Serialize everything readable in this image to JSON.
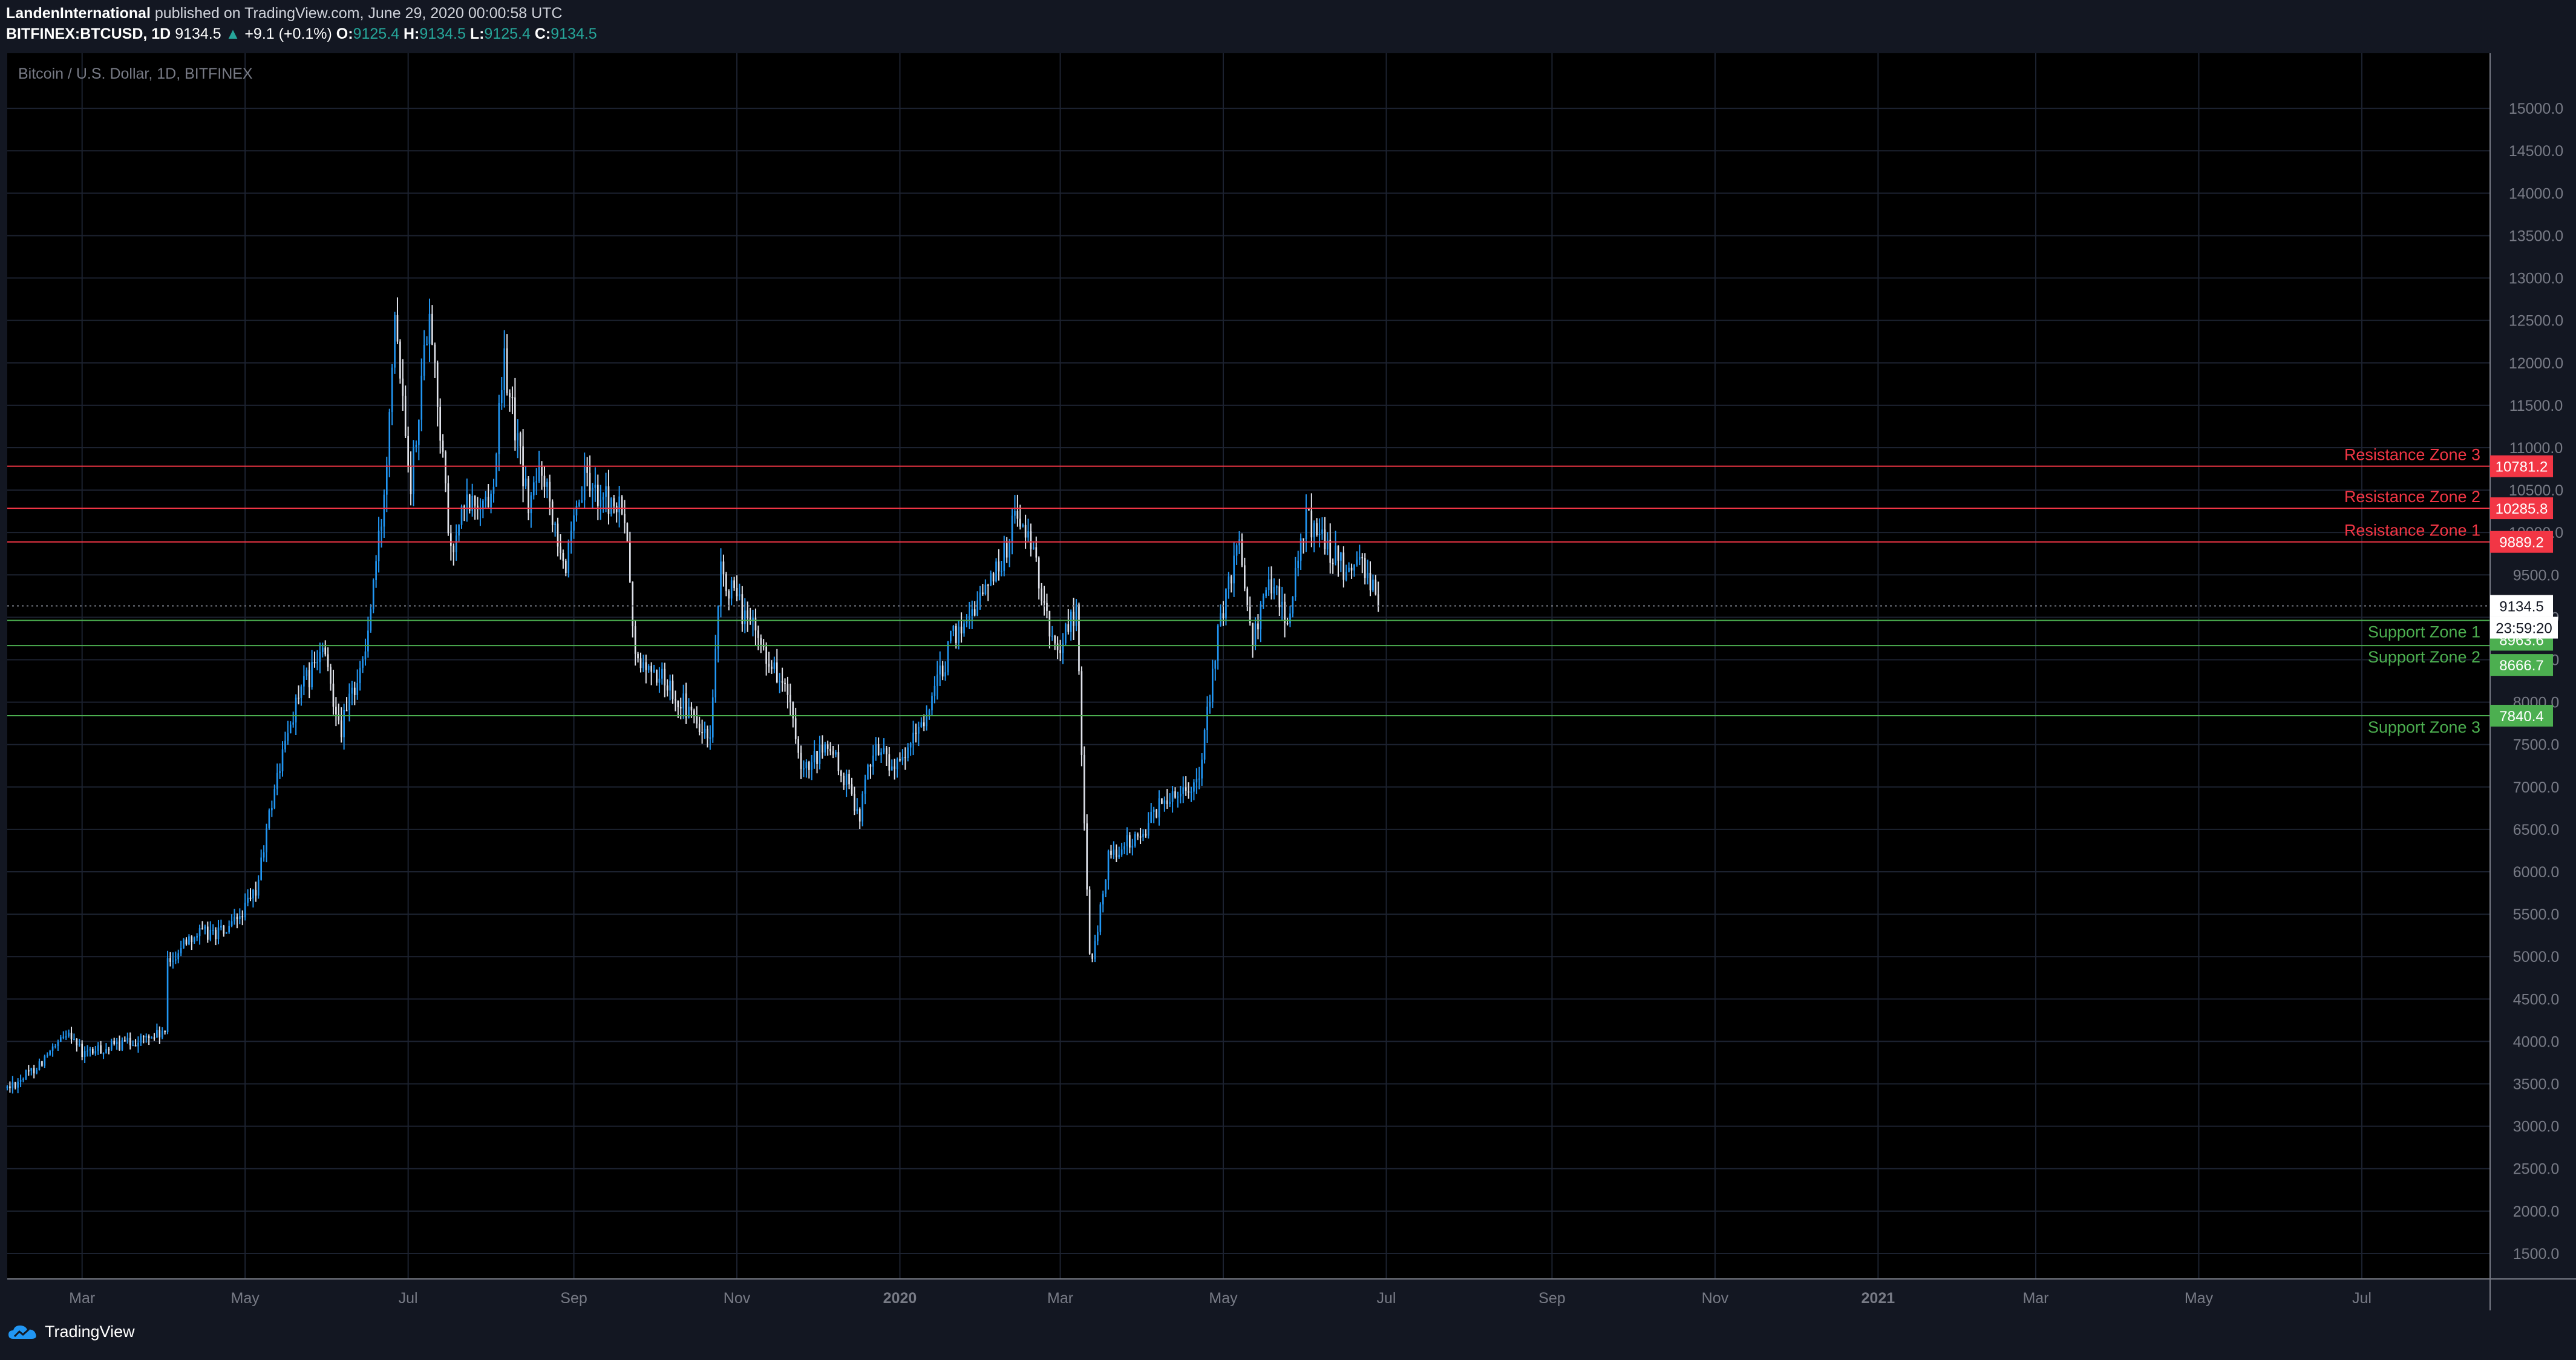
{
  "header": {
    "author": "LandenInternational",
    "published": "published on TradingView.com, June 29, 2020 00:00:58 UTC",
    "symbol": "BITFINEX:BTCUSD, 1D",
    "last": "9134.5",
    "change_arrow": "▲",
    "change": "+9.1 (+0.1%)",
    "o_label": "O:",
    "o_value": "9125.4",
    "h_label": "H:",
    "h_value": "9134.5",
    "l_label": "L:",
    "l_value": "9125.4",
    "c_label": "C:",
    "c_value": "9134.5"
  },
  "footer": {
    "brand": "TradingView",
    "logo_icon": "tradingview-cloud-icon"
  },
  "chart_data": {
    "type": "candlestick",
    "title": "Bitcoin / U.S. Dollar, 1D, BITFINEX",
    "ylim": [
      1200,
      15650
    ],
    "y_ticks": [
      1500,
      2000,
      2500,
      3000,
      3500,
      4000,
      4500,
      5000,
      5500,
      6000,
      6500,
      7000,
      7500,
      8000,
      8500,
      9000,
      9500,
      10000,
      10500,
      11000,
      11500,
      12000,
      12500,
      13000,
      13500,
      14000,
      14500,
      15000
    ],
    "x_range": [
      "2019-02-01",
      "2021-08-18"
    ],
    "x_ticks": [
      {
        "label": "Mar",
        "date": "2019-03-01"
      },
      {
        "label": "May",
        "date": "2019-05-01"
      },
      {
        "label": "Jul",
        "date": "2019-07-01"
      },
      {
        "label": "Sep",
        "date": "2019-09-01"
      },
      {
        "label": "Nov",
        "date": "2019-11-01"
      },
      {
        "label": "2020",
        "date": "2020-01-01"
      },
      {
        "label": "Mar",
        "date": "2020-03-01"
      },
      {
        "label": "May",
        "date": "2020-05-01"
      },
      {
        "label": "Jul",
        "date": "2020-07-01"
      },
      {
        "label": "Sep",
        "date": "2020-09-01"
      },
      {
        "label": "Nov",
        "date": "2020-11-01"
      },
      {
        "label": "2021",
        "date": "2021-01-01"
      },
      {
        "label": "Mar",
        "date": "2021-03-01"
      },
      {
        "label": "May",
        "date": "2021-05-01"
      },
      {
        "label": "Jul",
        "date": "2021-07-01"
      }
    ],
    "series_closes": [
      {
        "date": "2019-02-01",
        "close": 3450
      },
      {
        "date": "2019-02-10",
        "close": 3650
      },
      {
        "date": "2019-02-20",
        "close": 3950
      },
      {
        "date": "2019-02-24",
        "close": 4150
      },
      {
        "date": "2019-03-01",
        "close": 3850
      },
      {
        "date": "2019-03-20",
        "close": 4000
      },
      {
        "date": "2019-04-01",
        "close": 4100
      },
      {
        "date": "2019-04-02",
        "close": 4900
      },
      {
        "date": "2019-04-10",
        "close": 5250
      },
      {
        "date": "2019-04-25",
        "close": 5300
      },
      {
        "date": "2019-05-05",
        "close": 5750
      },
      {
        "date": "2019-05-12",
        "close": 7000
      },
      {
        "date": "2019-05-20",
        "close": 8000
      },
      {
        "date": "2019-05-30",
        "close": 8600
      },
      {
        "date": "2019-06-06",
        "close": 7700
      },
      {
        "date": "2019-06-15",
        "close": 8600
      },
      {
        "date": "2019-06-22",
        "close": 10400
      },
      {
        "date": "2019-06-26",
        "close": 12700
      },
      {
        "date": "2019-07-02",
        "close": 10600
      },
      {
        "date": "2019-07-09",
        "close": 12700
      },
      {
        "date": "2019-07-17",
        "close": 9700
      },
      {
        "date": "2019-07-22",
        "close": 10300
      },
      {
        "date": "2019-08-01",
        "close": 10400
      },
      {
        "date": "2019-08-06",
        "close": 12000
      },
      {
        "date": "2019-08-15",
        "close": 10300
      },
      {
        "date": "2019-08-20",
        "close": 10800
      },
      {
        "date": "2019-08-29",
        "close": 9600
      },
      {
        "date": "2019-09-05",
        "close": 10600
      },
      {
        "date": "2019-09-20",
        "close": 10200
      },
      {
        "date": "2019-09-24",
        "close": 8500
      },
      {
        "date": "2019-10-07",
        "close": 8200
      },
      {
        "date": "2019-10-22",
        "close": 7500
      },
      {
        "date": "2019-10-26",
        "close": 9500
      },
      {
        "date": "2019-11-08",
        "close": 8800
      },
      {
        "date": "2019-11-20",
        "close": 8100
      },
      {
        "date": "2019-11-25",
        "close": 7100
      },
      {
        "date": "2019-12-05",
        "close": 7500
      },
      {
        "date": "2019-12-17",
        "close": 6700
      },
      {
        "date": "2019-12-22",
        "close": 7500
      },
      {
        "date": "2020-01-01",
        "close": 7200
      },
      {
        "date": "2020-01-14",
        "close": 8100
      },
      {
        "date": "2020-01-20",
        "close": 8700
      },
      {
        "date": "2020-02-01",
        "close": 9300
      },
      {
        "date": "2020-02-10",
        "close": 9800
      },
      {
        "date": "2020-02-13",
        "close": 10300
      },
      {
        "date": "2020-02-20",
        "close": 9700
      },
      {
        "date": "2020-02-28",
        "close": 8600
      },
      {
        "date": "2020-03-07",
        "close": 9100
      },
      {
        "date": "2020-03-12",
        "close": 5000
      },
      {
        "date": "2020-03-13",
        "close": 4900
      },
      {
        "date": "2020-03-19",
        "close": 6200
      },
      {
        "date": "2020-03-30",
        "close": 6400
      },
      {
        "date": "2020-04-10",
        "close": 6900
      },
      {
        "date": "2020-04-22",
        "close": 7100
      },
      {
        "date": "2020-04-29",
        "close": 8800
      },
      {
        "date": "2020-05-07",
        "close": 9900
      },
      {
        "date": "2020-05-12",
        "close": 8800
      },
      {
        "date": "2020-05-20",
        "close": 9500
      },
      {
        "date": "2020-05-25",
        "close": 8900
      },
      {
        "date": "2020-06-01",
        "close": 10200
      },
      {
        "date": "2020-06-10",
        "close": 9800
      },
      {
        "date": "2020-06-18",
        "close": 9400
      },
      {
        "date": "2020-06-22",
        "close": 9700
      },
      {
        "date": "2020-06-28",
        "close": 9134.5
      }
    ],
    "horizontal_levels": [
      {
        "name": "Resistance Zone 3",
        "value": 10781.2,
        "label": "10781.2",
        "color": "#f23645"
      },
      {
        "name": "Resistance Zone 2",
        "value": 10285.8,
        "label": "10285.8",
        "color": "#f23645"
      },
      {
        "name": "Resistance Zone 1",
        "value": 9889.2,
        "label": "9889.2",
        "color": "#f23645"
      },
      {
        "name": "Support Zone 1",
        "value": 8963.6,
        "label": "8963.6",
        "color": "#4caf50"
      },
      {
        "name": "Support Zone 2",
        "value": 8666.7,
        "label": "8666.7",
        "color": "#4caf50"
      },
      {
        "name": "Support Zone 3",
        "value": 7840.4,
        "label": "7840.4",
        "color": "#4caf50"
      }
    ],
    "last_price": {
      "value": 9134.5,
      "label": "9134.5",
      "countdown": "23:59:20"
    },
    "colors": {
      "bg": "#000000",
      "grid": "#1c2230",
      "up": "#2196f3",
      "down": "#e0e3eb",
      "text": "#787b86",
      "resistance": "#f23645",
      "support": "#4caf50"
    }
  }
}
